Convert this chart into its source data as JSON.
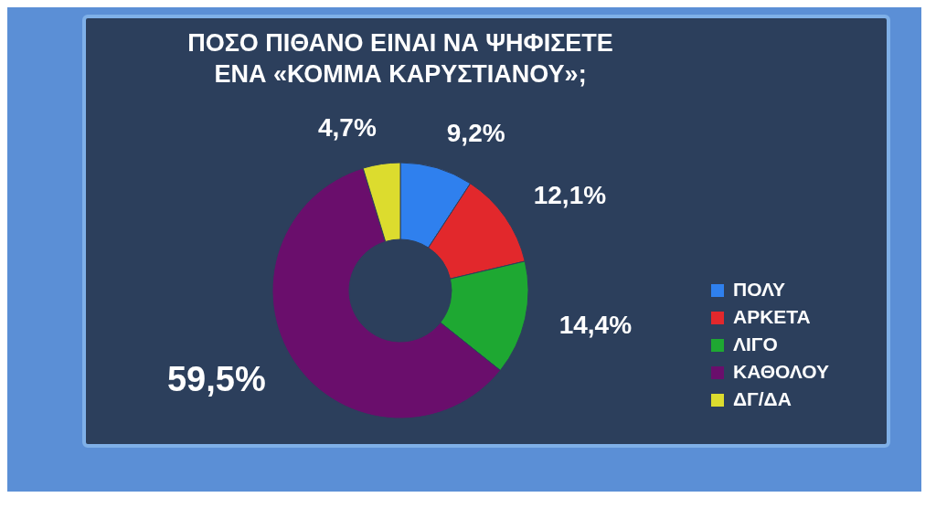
{
  "chart_data": {
    "type": "donut",
    "title": "ΠΟΣΟ ΠΙΘΑΝΟ ΕΙΝΑΙ ΝΑ ΨΗΦΙΣΕΤΕ\nΕΝΑ «ΚΟΜΜΑ ΚΑΡΥΣΤΙΑΝΟΥ»;",
    "categories": [
      "ΠΟΛΥ",
      "ΑΡΚΕΤΑ",
      "ΛΙΓΟ",
      "ΚΑΘΟΛΟΥ",
      "ΔΓ/ΔΑ"
    ],
    "values": [
      9.2,
      12.1,
      14.4,
      59.5,
      4.7
    ],
    "value_labels": [
      "9,2%",
      "12,1%",
      "14,4%",
      "59,5%",
      "4,7%"
    ],
    "colors": [
      "#2f80ee",
      "#e2282c",
      "#1ea832",
      "#6a0e6c",
      "#dcdc2e"
    ],
    "legend": "right"
  }
}
